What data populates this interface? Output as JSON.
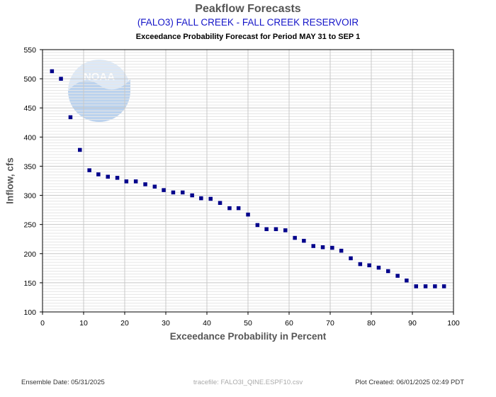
{
  "header": {
    "title": "Peakflow Forecasts",
    "subtitle": "(FALO3) FALL CREEK - FALL CREEK RESERVOIR",
    "subtitle2": "Exceedance Probability Forecast for Period MAY 31 to SEP 1"
  },
  "logo": {
    "text": "NOAA"
  },
  "footer": {
    "ensemble_date": "Ensemble Date: 05/31/2025",
    "tracefile": "tracefile: FALO3I_QINE.ESPF10.csv",
    "plot_created": "Plot Created: 06/01/2025 02:49 PDT"
  },
  "chart_data": {
    "type": "scatter",
    "title": "Peakflow Forecasts",
    "subtitle": "(FALO3) FALL CREEK - FALL CREEK RESERVOIR",
    "xlabel": "Exceedance Probability in Percent",
    "ylabel": "Inflow, cfs",
    "xlim": [
      0,
      100
    ],
    "ylim": [
      100,
      550
    ],
    "x_ticks": [
      0,
      10,
      20,
      30,
      40,
      50,
      60,
      70,
      80,
      90,
      100
    ],
    "y_ticks": [
      100,
      150,
      200,
      250,
      300,
      350,
      400,
      450,
      500,
      550
    ],
    "grid": true,
    "marker_color": "#00008b",
    "x": [
      2.3,
      4.5,
      6.8,
      9.1,
      11.4,
      13.6,
      15.9,
      18.2,
      20.4,
      22.7,
      25.0,
      27.3,
      29.5,
      31.8,
      34.1,
      36.4,
      38.6,
      40.9,
      43.2,
      45.5,
      47.7,
      50.0,
      52.3,
      54.5,
      56.8,
      59.1,
      61.4,
      63.6,
      65.9,
      68.2,
      70.5,
      72.7,
      75.0,
      77.3,
      79.5,
      81.8,
      84.1,
      86.4,
      88.6,
      90.9,
      93.2,
      95.5,
      97.7
    ],
    "y": [
      513,
      500,
      434,
      378,
      343,
      336,
      332,
      330,
      324,
      324,
      319,
      315,
      309,
      305,
      305,
      300,
      295,
      294,
      287,
      278,
      278,
      267,
      249,
      242,
      242,
      240,
      227,
      222,
      213,
      211,
      210,
      205,
      192,
      182,
      180,
      176,
      170,
      162,
      154,
      144,
      144,
      144,
      144
    ]
  }
}
